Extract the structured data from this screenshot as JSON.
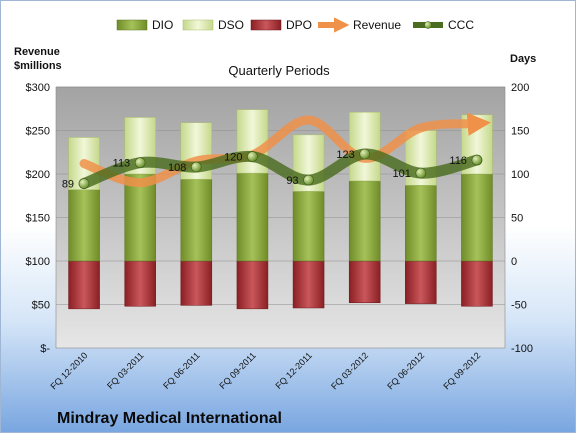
{
  "chart_data": {
    "type": "bar",
    "title": "Quarterly Periods",
    "company": "Mindray Medical International",
    "left_axis_label": "Revenue\n$millions",
    "right_axis_label": "Days",
    "categories": [
      "FQ 12-2010",
      "FQ 03-2011",
      "FQ 06-2011",
      "FQ 09-2011",
      "FQ 12-2011",
      "FQ 03-2012",
      "FQ 06-2012",
      "FQ 09-2012"
    ],
    "left_ylim": [
      0,
      300
    ],
    "left_ticks": [
      "$-",
      "$50",
      "$100",
      "$150",
      "$200",
      "$250",
      "$300"
    ],
    "right_ylim": [
      -100,
      200
    ],
    "right_ticks": [
      "-100",
      "-50",
      "0",
      "50",
      "100",
      "150",
      "200"
    ],
    "legend": [
      "DIO",
      "DSO",
      "DPO",
      "Revenue",
      "CCC"
    ],
    "legend_position": "top",
    "series": [
      {
        "name": "DIO",
        "axis": "right",
        "color": "#7a9a2e",
        "values": [
          82,
          100,
          94,
          101,
          80,
          92,
          87,
          100
        ]
      },
      {
        "name": "DSO",
        "axis": "right",
        "color": "#dceab1",
        "values": [
          60,
          65,
          65,
          73,
          65,
          79,
          63,
          68
        ]
      },
      {
        "name": "DPO",
        "axis": "right",
        "color": "#a3262b",
        "values": [
          -55,
          -52,
          -51,
          -55,
          -54,
          -48,
          -49,
          -52
        ]
      },
      {
        "name": "Revenue",
        "axis": "left",
        "color": "#e88a3a",
        "values": [
          212,
          190,
          215,
          222,
          262,
          218,
          253,
          258
        ]
      },
      {
        "name": "CCC",
        "axis": "right",
        "color": "#4a6d1f",
        "values": [
          89,
          113,
          108,
          120,
          93,
          123,
          101,
          116
        ]
      }
    ],
    "data_labels": [
      "89",
      "113",
      "108",
      "120",
      "93",
      "123",
      "101",
      "116"
    ]
  }
}
